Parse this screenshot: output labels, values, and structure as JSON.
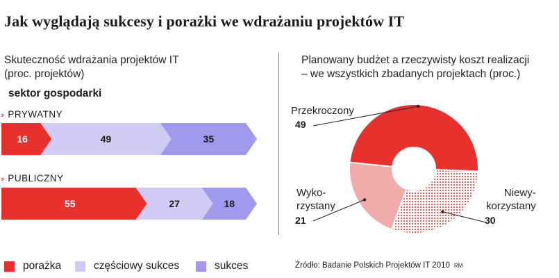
{
  "title": "Jak wyglądają sukcesy i porażki we wdrażaniu projektów IT",
  "left_panel": {
    "subtitle_line1": "Skuteczność wdrażania projektów IT",
    "subtitle_line2": "(proc. projektów)",
    "sector_heading": "sektor gospodarki"
  },
  "right_panel": {
    "subtitle_line1": "Planowany budżet a rzeczywisty koszt realizacji",
    "subtitle_line2": "– we wszystkich zbadanych projektach (proc.)"
  },
  "colors": {
    "red": "#e8312c",
    "light_purple": "#cfcbf5",
    "purple": "#9f9aee",
    "pink": "#f0abaa",
    "dot_red": "#e0302a"
  },
  "chart_data": [
    {
      "type": "bar",
      "orientation": "horizontal",
      "stacked": true,
      "categories": [
        "PRYWATNY",
        "PUBLICZNY"
      ],
      "series": [
        {
          "name": "porażka",
          "values": [
            16,
            55
          ]
        },
        {
          "name": "częściowy sukces",
          "values": [
            49,
            27
          ]
        },
        {
          "name": "sukces",
          "values": [
            35,
            18
          ]
        }
      ],
      "legend": [
        "porażka",
        "częściowy sukces",
        "sukces"
      ],
      "title": "Skuteczność wdrażania projektów IT (proc. projektów)"
    },
    {
      "type": "pie",
      "donut": true,
      "labels": [
        "Przekroczony",
        "Niewykorzystany",
        "Wykorzystany"
      ],
      "label_lines": [
        [
          "Przekroczony"
        ],
        [
          "Niewy-",
          "korzystany"
        ],
        [
          "Wyko-",
          "rzystany"
        ]
      ],
      "values": [
        49,
        30,
        21
      ],
      "title": "Planowany budżet a rzeczywisty koszt realizacji – we wszystkich zbadanych projektach (proc.)"
    }
  ],
  "source": "Źródło: Badanie Polskich Projektów IT 2010",
  "credit": "RM"
}
